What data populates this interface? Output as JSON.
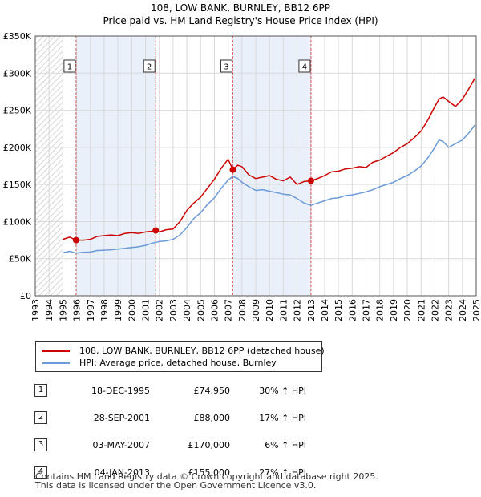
{
  "header": {
    "title": "108, LOW BANK, BURNLEY, BB12 6PP",
    "subtitle": "Price paid vs. HM Land Registry's House Price Index (HPI)"
  },
  "colors": {
    "property_line": "#cc0000",
    "hpi_line": "#6a9bd8",
    "sale_band": "#e9f0fa",
    "pre_data_hatch": "#c8c8c8",
    "grid": "#d9d9d9",
    "marker_border": "#cc0000"
  },
  "chart_data": {
    "type": "line",
    "title": "Price paid vs. HM Land Registry's House Price Index (HPI)",
    "xlabel": "",
    "ylabel": "",
    "xlim": [
      1993,
      2025
    ],
    "ylim": [
      0,
      350000
    ],
    "y_ticks": [
      0,
      50000,
      100000,
      150000,
      200000,
      250000,
      300000,
      350000
    ],
    "y_tick_labels": [
      "£0",
      "£50K",
      "£100K",
      "£150K",
      "£200K",
      "£250K",
      "£300K",
      "£350K"
    ],
    "x_ticks": [
      1993,
      1994,
      1995,
      1996,
      1997,
      1998,
      1999,
      2000,
      2001,
      2002,
      2003,
      2004,
      2005,
      2006,
      2007,
      2008,
      2009,
      2010,
      2011,
      2012,
      2013,
      2014,
      2015,
      2016,
      2017,
      2018,
      2019,
      2020,
      2021,
      2022,
      2023,
      2024,
      2025
    ],
    "x_tick_labels": [
      "1993",
      "1994",
      "1995",
      "1996",
      "1997",
      "1998",
      "1999",
      "2000",
      "2001",
      "2002",
      "2003",
      "2004",
      "2005",
      "2006",
      "2007",
      "2008",
      "2009",
      "2010",
      "2011",
      "2012",
      "2013",
      "2014",
      "2015",
      "2016",
      "2017",
      "2018",
      "2019",
      "2020",
      "2021",
      "2022",
      "2023",
      "2024",
      "2025"
    ],
    "data_start_year": 1995,
    "grid": true,
    "series": [
      {
        "name": "108, LOW BANK, BURNLEY, BB12 6PP (detached house)",
        "x": [
          1995.0,
          1995.5,
          1995.96,
          1996.5,
          1997.0,
          1997.5,
          1998.0,
          1998.5,
          1999.0,
          1999.5,
          2000.0,
          2000.5,
          2001.0,
          2001.5,
          2001.74,
          2002.0,
          2002.5,
          2003.0,
          2003.5,
          2004.0,
          2004.5,
          2005.0,
          2005.5,
          2006.0,
          2006.5,
          2007.0,
          2007.34,
          2007.7,
          2008.0,
          2008.5,
          2009.0,
          2009.5,
          2010.0,
          2010.5,
          2011.0,
          2011.5,
          2012.0,
          2012.5,
          2013.01,
          2013.5,
          2014.0,
          2014.5,
          2015.0,
          2015.5,
          2016.0,
          2016.5,
          2017.0,
          2017.5,
          2018.0,
          2018.5,
          2019.0,
          2019.5,
          2020.0,
          2020.5,
          2021.0,
          2021.5,
          2022.0,
          2022.3,
          2022.6,
          2023.0,
          2023.5,
          2024.0,
          2024.5,
          2024.9
        ],
        "values": [
          76000,
          79000,
          74950,
          75000,
          76000,
          80000,
          81000,
          82000,
          81000,
          84000,
          85000,
          84000,
          86000,
          87000,
          88000,
          86000,
          89000,
          90000,
          100000,
          115000,
          125000,
          133000,
          145000,
          157000,
          172000,
          184000,
          170000,
          176000,
          174000,
          163000,
          158000,
          160000,
          162000,
          157000,
          155000,
          160000,
          150000,
          154000,
          155000,
          158000,
          162000,
          167000,
          168000,
          171000,
          172000,
          174000,
          173000,
          180000,
          183000,
          188000,
          193000,
          200000,
          205000,
          213000,
          222000,
          237000,
          255000,
          265000,
          268000,
          262000,
          255000,
          265000,
          280000,
          293000
        ]
      },
      {
        "name": "HPI: Average price, detached house, Burnley",
        "x": [
          1995.0,
          1995.5,
          1996.0,
          1996.5,
          1997.0,
          1997.5,
          1998.0,
          1998.5,
          1999.0,
          1999.5,
          2000.0,
          2000.5,
          2001.0,
          2001.5,
          2002.0,
          2002.5,
          2003.0,
          2003.5,
          2004.0,
          2004.5,
          2005.0,
          2005.5,
          2006.0,
          2006.5,
          2007.0,
          2007.34,
          2007.7,
          2008.0,
          2008.5,
          2009.0,
          2009.5,
          2010.0,
          2010.5,
          2011.0,
          2011.5,
          2012.0,
          2012.5,
          2013.0,
          2013.5,
          2014.0,
          2014.5,
          2015.0,
          2015.5,
          2016.0,
          2016.5,
          2017.0,
          2017.5,
          2018.0,
          2018.5,
          2019.0,
          2019.5,
          2020.0,
          2020.5,
          2021.0,
          2021.5,
          2022.0,
          2022.3,
          2022.6,
          2023.0,
          2023.5,
          2024.0,
          2024.5,
          2024.9
        ],
        "values": [
          58000,
          60000,
          57500,
          58500,
          59000,
          61000,
          61500,
          62000,
          63000,
          64000,
          65000,
          66000,
          68000,
          71000,
          73000,
          74000,
          76000,
          82000,
          92000,
          104000,
          112000,
          123000,
          132000,
          145000,
          156000,
          161000,
          158000,
          153000,
          147000,
          142000,
          143000,
          141000,
          139000,
          137000,
          136000,
          131000,
          125000,
          122000,
          125000,
          128000,
          131000,
          132000,
          135000,
          136000,
          138000,
          140000,
          143000,
          147000,
          150000,
          153000,
          158000,
          162000,
          168000,
          175000,
          186000,
          200000,
          210000,
          208000,
          200000,
          205000,
          210000,
          220000,
          230000
        ]
      }
    ],
    "sale_markers": [
      {
        "label": "1",
        "x": 1995.96,
        "value": 74950
      },
      {
        "label": "2",
        "x": 2001.74,
        "value": 88000
      },
      {
        "label": "3",
        "x": 2007.34,
        "value": 170000
      },
      {
        "label": "4",
        "x": 2013.01,
        "value": 155000
      }
    ],
    "shaded_bands": [
      {
        "from": 1995.96,
        "to": 2001.74
      },
      {
        "from": 2007.34,
        "to": 2013.01
      }
    ]
  },
  "legend": {
    "items": [
      {
        "label": "108, LOW BANK, BURNLEY, BB12 6PP (detached house)",
        "color": "#cc0000"
      },
      {
        "label": "HPI: Average price, detached house, Burnley",
        "color": "#6a9bd8"
      }
    ]
  },
  "sales_table": {
    "rows": [
      {
        "num": "1",
        "date": "18-DEC-1995",
        "price": "£74,950",
        "hpi": "30% ↑ HPI"
      },
      {
        "num": "2",
        "date": "28-SEP-2001",
        "price": "£88,000",
        "hpi": "17% ↑ HPI"
      },
      {
        "num": "3",
        "date": "03-MAY-2007",
        "price": "£170,000",
        "hpi": "6% ↑ HPI"
      },
      {
        "num": "4",
        "date": "04-JAN-2013",
        "price": "£155,000",
        "hpi": "27% ↑ HPI"
      }
    ]
  },
  "footer": {
    "line1": "Contains HM Land Registry data © Crown copyright and database right 2025.",
    "line2": "This data is licensed under the Open Government Licence v3.0."
  }
}
